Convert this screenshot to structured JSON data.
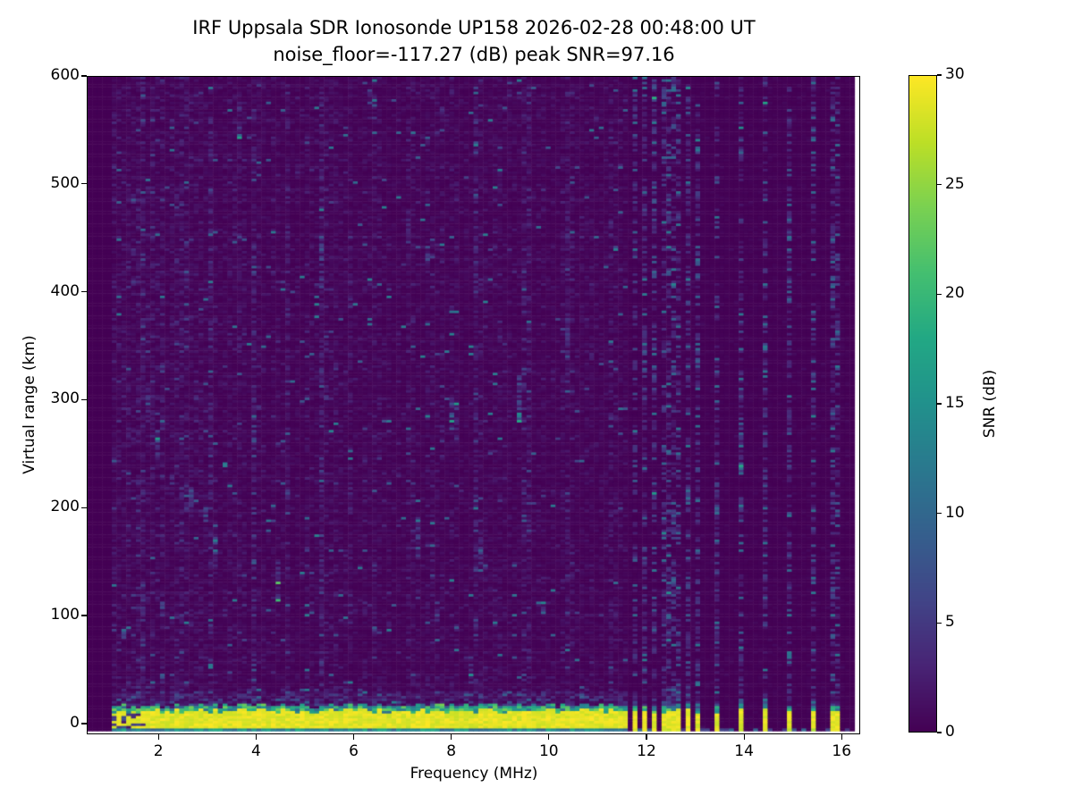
{
  "chart_data": {
    "type": "heatmap",
    "title": "IRF Uppsala SDR Ionosonde UP158 2026-02-28 00:48:00  UT",
    "subtitle": "noise_floor=-117.27 (dB) peak SNR=97.16",
    "station_id": "UP158",
    "datetime_ut": "2026-02-28 00:48:00",
    "noise_floor_db": -117.27,
    "peak_snr_db": 97.16,
    "xlabel": "Frequency (MHz)",
    "ylabel": "Virtual range (km)",
    "x_ticks": [
      2,
      4,
      6,
      8,
      10,
      12,
      14,
      16
    ],
    "y_ticks": [
      0,
      100,
      200,
      300,
      400,
      500,
      600
    ],
    "x_range": [
      0.53,
      16.38
    ],
    "y_range": [
      -10,
      600
    ],
    "grid": false,
    "legend": false,
    "colormap": "viridis",
    "viridis_stops": [
      [
        0.0,
        "#440154"
      ],
      [
        0.1,
        "#482475"
      ],
      [
        0.2,
        "#414487"
      ],
      [
        0.3,
        "#355f8d"
      ],
      [
        0.4,
        "#2a788e"
      ],
      [
        0.5,
        "#21918c"
      ],
      [
        0.6,
        "#22a884"
      ],
      [
        0.7,
        "#44bf70"
      ],
      [
        0.8,
        "#7ad151"
      ],
      [
        0.9,
        "#bddf26"
      ],
      [
        1.0,
        "#fde725"
      ]
    ],
    "colorbar": {
      "label": "SNR (dB)",
      "ticks": [
        0,
        5,
        10,
        15,
        20,
        25,
        30
      ],
      "vmin": 0,
      "vmax": 30
    },
    "background_color": "#ffffff",
    "axis_color": "#000000",
    "data_extent": {
      "f_min_mhz": 1.0,
      "f_max_mhz": 16.25,
      "range_min_km": -8.5,
      "range_max_km": 600
    },
    "ground_pulse": {
      "description": "bright saturated echo band at ~0 km virtual range",
      "band_km": [
        -5,
        12
      ],
      "fringe_km": [
        12,
        30
      ],
      "underline_km": [
        -8.5,
        -5
      ],
      "continuous_sweep_mhz": [
        1.0,
        11.65
      ],
      "patchy_start_mhz": [
        1.0,
        1.7
      ],
      "snr_db": 30
    },
    "stepped_pulse_freqs_mhz": [
      11.78,
      11.97,
      12.16,
      12.34,
      12.51,
      12.68,
      12.85,
      13.04,
      13.46,
      13.95,
      14.43,
      14.92,
      15.41,
      15.9
    ],
    "rfi_streaks": [
      {
        "mhz": 1.35,
        "strength": 2.0
      },
      {
        "mhz": 1.62,
        "strength": 1.6
      },
      {
        "mhz": 2.05,
        "strength": 1.5
      },
      {
        "mhz": 2.52,
        "strength": 2.1
      },
      {
        "mhz": 3.07,
        "strength": 1.9
      },
      {
        "mhz": 3.55,
        "strength": 1.5
      },
      {
        "mhz": 3.94,
        "strength": 3.0
      },
      {
        "mhz": 4.33,
        "strength": 1.6
      },
      {
        "mhz": 4.66,
        "strength": 1.9
      },
      {
        "mhz": 5.02,
        "strength": 1.5
      },
      {
        "mhz": 5.34,
        "strength": 2.4
      },
      {
        "mhz": 5.95,
        "strength": 1.5
      },
      {
        "mhz": 6.42,
        "strength": 1.9
      },
      {
        "mhz": 7.12,
        "strength": 1.6
      },
      {
        "mhz": 7.8,
        "strength": 1.4
      },
      {
        "mhz": 8.48,
        "strength": 2.2
      },
      {
        "mhz": 9.02,
        "strength": 1.5
      },
      {
        "mhz": 9.55,
        "strength": 1.9
      },
      {
        "mhz": 10.33,
        "strength": 1.6
      },
      {
        "mhz": 10.92,
        "strength": 1.5
      },
      {
        "mhz": 11.32,
        "strength": 1.6
      }
    ],
    "seed": 1337
  }
}
